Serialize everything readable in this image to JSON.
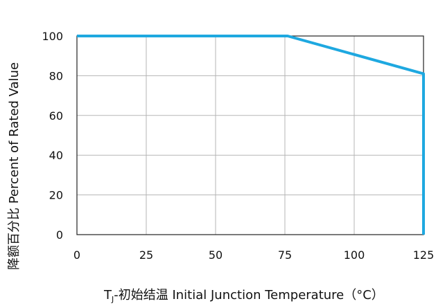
{
  "chart_data": {
    "type": "line",
    "xlabel_sub": "J",
    "xlabel_rest": "-初始结温 Initial Junction Temperature（°C）",
    "ylabel": "降额百分比  Percent of Rated Value",
    "x_ticks": [
      "0",
      "25",
      "50",
      "75",
      "100",
      "125"
    ],
    "y_ticks": [
      "0",
      "20",
      "40",
      "60",
      "80",
      "100"
    ],
    "xlim": [
      0,
      125
    ],
    "ylim": [
      0,
      100
    ],
    "grid": true,
    "series": [
      {
        "color": "#1ea8e0",
        "x": [
          0,
          76,
          125,
          125
        ],
        "y": [
          100,
          100,
          81,
          0
        ]
      }
    ]
  }
}
